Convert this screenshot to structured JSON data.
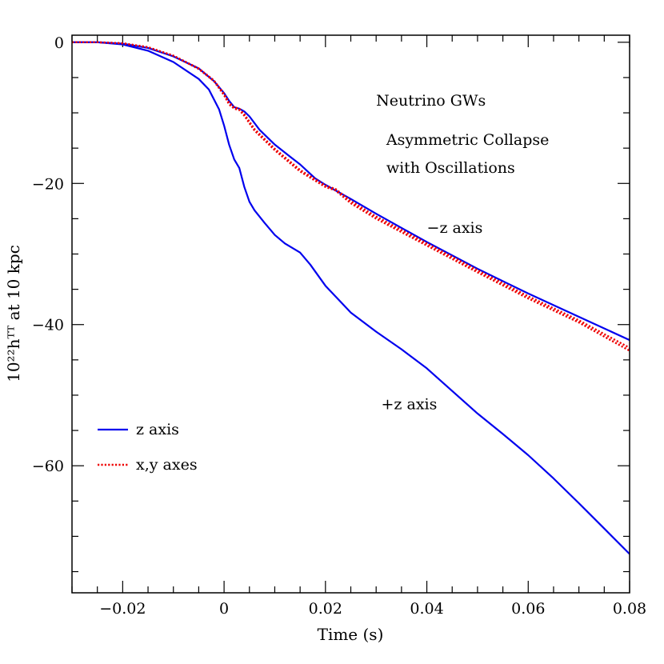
{
  "chart_data": {
    "type": "line",
    "xlabel": "Time (s)",
    "ylabel": "10²²hᵀᵀ at 10 kpc",
    "xlim": [
      -0.03,
      0.08
    ],
    "ylim": [
      -78,
      1
    ],
    "x_major_ticks": [
      -0.02,
      0,
      0.02,
      0.04,
      0.06,
      0.08
    ],
    "x_tick_labels": [
      "−0.02",
      "0",
      "0.02",
      "0.04",
      "0.06",
      "0.08"
    ],
    "x_minor_step": 0.005,
    "y_major_ticks": [
      0,
      -20,
      -40,
      -60
    ],
    "y_tick_labels": [
      "0",
      "−20",
      "−40",
      "−60"
    ],
    "y_minor_step": 5,
    "grid": false,
    "legend_position": "bottom-left",
    "annotations": [
      {
        "text": "Neutrino GWs",
        "x": 0.03,
        "y": -9
      },
      {
        "text": "Asymmetric Collapse",
        "x": 0.032,
        "y": -14.5
      },
      {
        "text": "with Oscillations",
        "x": 0.032,
        "y": -18.5
      },
      {
        "text": "−z axis",
        "x": 0.04,
        "y": -27
      },
      {
        "text": "+z axis",
        "x": 0.031,
        "y": -52
      }
    ],
    "legend": [
      {
        "label": "z axis",
        "color": "#0000ee",
        "style": "solid"
      },
      {
        "label": "x,y axes",
        "color": "#ee0000",
        "style": "dotted"
      }
    ],
    "series": [
      {
        "name": "−z axis",
        "color": "#0000ee",
        "style": "solid",
        "points": [
          [
            -0.03,
            0
          ],
          [
            -0.025,
            0
          ],
          [
            -0.02,
            -0.2
          ],
          [
            -0.015,
            -0.8
          ],
          [
            -0.01,
            -2
          ],
          [
            -0.005,
            -3.7
          ],
          [
            -0.002,
            -5.5
          ],
          [
            0,
            -7.2
          ],
          [
            0.001,
            -8.3
          ],
          [
            0.002,
            -9.2
          ],
          [
            0.003,
            -9.4
          ],
          [
            0.004,
            -9.8
          ],
          [
            0.005,
            -10.5
          ],
          [
            0.007,
            -12.4
          ],
          [
            0.01,
            -14.5
          ],
          [
            0.013,
            -16.2
          ],
          [
            0.015,
            -17.3
          ],
          [
            0.018,
            -19.3
          ],
          [
            0.02,
            -20.2
          ],
          [
            0.025,
            -22.2
          ],
          [
            0.03,
            -24.3
          ],
          [
            0.04,
            -28.3
          ],
          [
            0.05,
            -32.1
          ],
          [
            0.06,
            -35.6
          ],
          [
            0.07,
            -38.9
          ],
          [
            0.08,
            -42.2
          ]
        ]
      },
      {
        "name": "+z axis",
        "color": "#0000ee",
        "style": "solid",
        "points": [
          [
            -0.03,
            0
          ],
          [
            -0.025,
            0
          ],
          [
            -0.02,
            -0.3
          ],
          [
            -0.015,
            -1.2
          ],
          [
            -0.01,
            -2.8
          ],
          [
            -0.005,
            -5.2
          ],
          [
            -0.003,
            -6.7
          ],
          [
            -0.001,
            -9.5
          ],
          [
            0,
            -11.8
          ],
          [
            0.001,
            -14.5
          ],
          [
            0.002,
            -16.6
          ],
          [
            0.003,
            -17.8
          ],
          [
            0.004,
            -20.5
          ],
          [
            0.005,
            -22.6
          ],
          [
            0.006,
            -23.8
          ],
          [
            0.008,
            -25.6
          ],
          [
            0.01,
            -27.3
          ],
          [
            0.012,
            -28.5
          ],
          [
            0.015,
            -29.8
          ],
          [
            0.017,
            -31.5
          ],
          [
            0.02,
            -34.5
          ],
          [
            0.025,
            -38.3
          ],
          [
            0.03,
            -41
          ],
          [
            0.035,
            -43.5
          ],
          [
            0.04,
            -46.2
          ],
          [
            0.045,
            -49.4
          ],
          [
            0.05,
            -52.6
          ],
          [
            0.055,
            -55.5
          ],
          [
            0.06,
            -58.5
          ],
          [
            0.065,
            -61.8
          ],
          [
            0.07,
            -65.3
          ],
          [
            0.075,
            -68.9
          ],
          [
            0.08,
            -72.5
          ]
        ]
      },
      {
        "name": "x axis",
        "color": "#ee0000",
        "style": "dotted",
        "points": [
          [
            -0.03,
            0
          ],
          [
            -0.025,
            0
          ],
          [
            -0.02,
            -0.15
          ],
          [
            -0.015,
            -0.7
          ],
          [
            -0.01,
            -1.9
          ],
          [
            -0.005,
            -3.8
          ],
          [
            -0.002,
            -5.5
          ],
          [
            0,
            -7.5
          ],
          [
            0.001,
            -8.8
          ],
          [
            0.002,
            -9.4
          ],
          [
            0.003,
            -9.6
          ],
          [
            0.004,
            -10.4
          ],
          [
            0.006,
            -12.5
          ],
          [
            0.01,
            -15.3
          ],
          [
            0.015,
            -18.3
          ],
          [
            0.02,
            -20.5
          ],
          [
            0.022,
            -21
          ],
          [
            0.025,
            -22.8
          ],
          [
            0.03,
            -25
          ],
          [
            0.04,
            -28.8
          ],
          [
            0.05,
            -32.6
          ],
          [
            0.06,
            -36.3
          ],
          [
            0.07,
            -39.7
          ],
          [
            0.08,
            -43.7
          ]
        ]
      },
      {
        "name": "y axis",
        "color": "#ee0000",
        "style": "dotted",
        "points": [
          [
            -0.03,
            0
          ],
          [
            -0.025,
            0
          ],
          [
            -0.02,
            -0.15
          ],
          [
            -0.015,
            -0.7
          ],
          [
            -0.01,
            -1.9
          ],
          [
            -0.005,
            -3.7
          ],
          [
            -0.002,
            -5.4
          ],
          [
            0,
            -7.3
          ],
          [
            0.001,
            -8.6
          ],
          [
            0.002,
            -9.2
          ],
          [
            0.003,
            -9.4
          ],
          [
            0.004,
            -10.2
          ],
          [
            0.006,
            -12.3
          ],
          [
            0.01,
            -15.1
          ],
          [
            0.015,
            -18.1
          ],
          [
            0.02,
            -20.3
          ],
          [
            0.022,
            -20.8
          ],
          [
            0.025,
            -22.5
          ],
          [
            0.03,
            -24.7
          ],
          [
            0.04,
            -28.5
          ],
          [
            0.05,
            -32.3
          ],
          [
            0.06,
            -36
          ],
          [
            0.07,
            -39.4
          ],
          [
            0.08,
            -43.3
          ]
        ]
      }
    ]
  }
}
